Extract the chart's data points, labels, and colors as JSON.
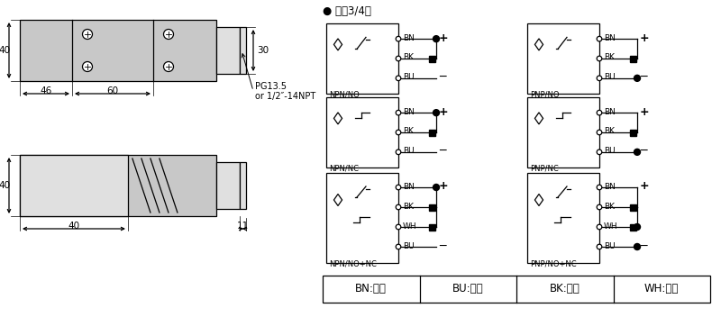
{
  "bg_color": "#ffffff",
  "line_color": "#000000",
  "gray_fill": "#c8c8c8",
  "light_gray": "#e0e0e0",
  "title_dc": "● 直流3/4线",
  "color_table_cells": [
    "BN:棕色",
    "BU:兰色",
    "BK:黑色",
    "WH:白色"
  ],
  "npn_labels": [
    "NPN/NO",
    "NPN/NC",
    "NPN/NO+NC"
  ],
  "pnp_labels": [
    "PNP/NO",
    "PNP/NC",
    "PNP/NO+NC"
  ],
  "wire_names_3": [
    "BN",
    "BK",
    "BU"
  ],
  "wire_names_4": [
    "BN",
    "BK",
    "WH",
    "BU"
  ],
  "dim_40_top": "40",
  "dim_46": "46",
  "dim_60": "60",
  "dim_30": "30",
  "dim_pg": "PG13.5",
  "dim_npt": "or 1/2″-14NPT",
  "dim_40_bot": "40",
  "dim_11": "11"
}
